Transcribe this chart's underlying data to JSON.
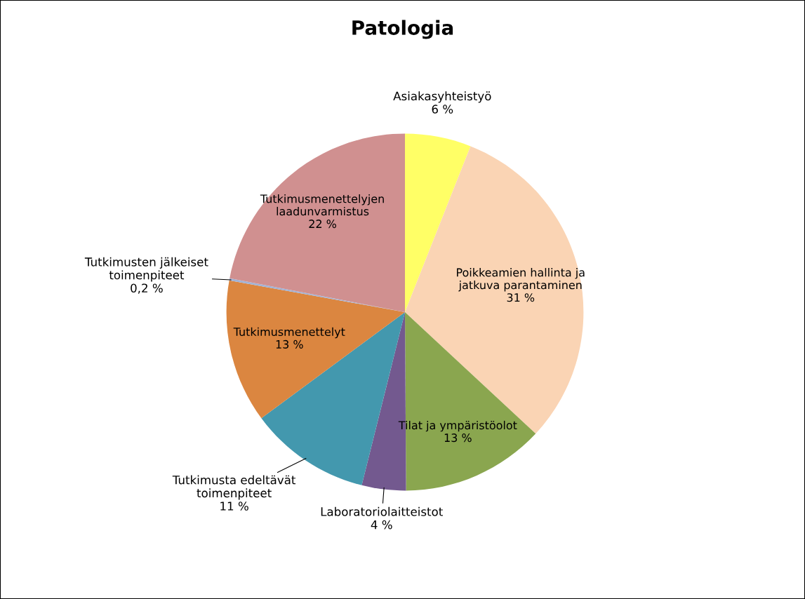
{
  "chart_data": {
    "type": "pie",
    "title": "Patologia",
    "categories": [
      "Asiakasyhteistyö",
      "Poikkeamien hallinta ja\njatkuva parantaminen",
      "Tilat ja ympäristöolot",
      "Laboratoriolaitteistot",
      "Tutkimusta edeltävät\ntoimenpiteet",
      "Tutkimusmenettelyt",
      "Tutkimusten jälkeiset\ntoimenpiteet",
      "Tutkimusmenettelyjen\nlaadunvarmistus"
    ],
    "values": [
      6,
      31,
      13,
      4,
      11,
      13,
      0.2,
      22
    ],
    "value_labels": [
      "6 %",
      "31 %",
      "13 %",
      "4 %",
      "11 %",
      "13 %",
      "0,2 %",
      "22 %"
    ],
    "colors": [
      "#ffff66",
      "#fad4b4",
      "#8aa64f",
      "#73598f",
      "#4398ae",
      "#db8640",
      "#a0b2d6",
      "#d09090"
    ],
    "legend": false
  }
}
